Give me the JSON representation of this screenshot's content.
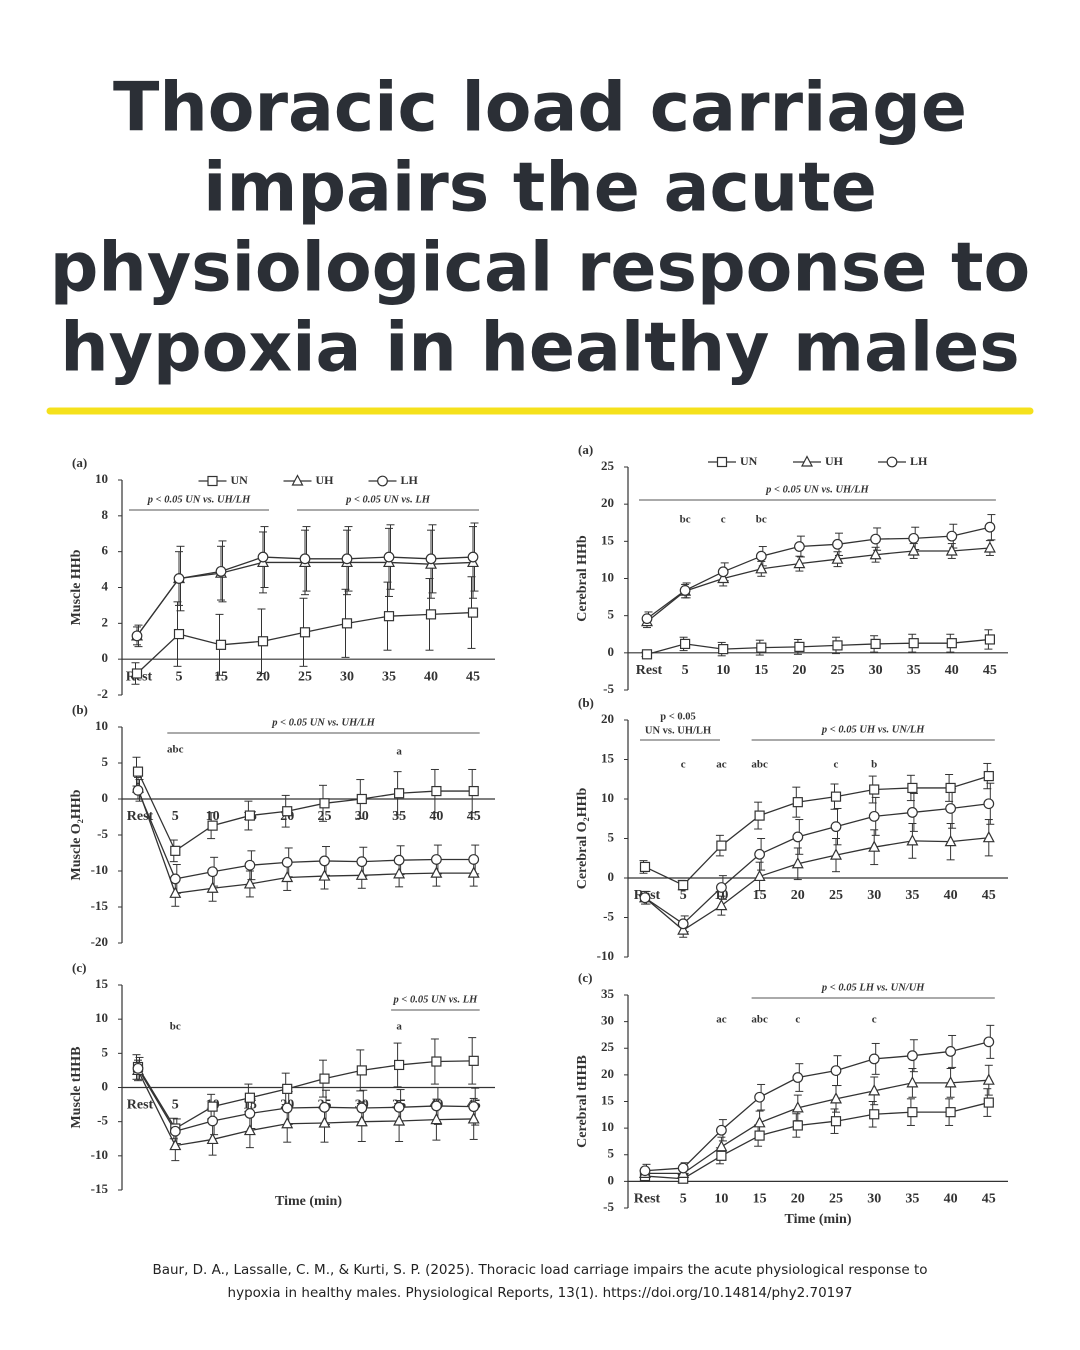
{
  "header": {
    "title": [
      "Thoracic load carriage",
      "impairs the acute",
      "physiological response to",
      "hypoxia in healthy males"
    ]
  },
  "citation": [
    "Baur, D. A., Lassalle, C. M., & Kurti, S. P. (2025). Thoracic load carriage impairs the acute physiological response to",
    "hypoxia in healthy males. Physiological Reports, 13(1). https://doi.org/10.14814/phy2.70197"
  ],
  "chart_data": [
    {
      "type": "line",
      "panel": "(a)",
      "y_label": "Muscle HHb",
      "categories": [
        "Rest",
        "5",
        "15",
        "20",
        "25",
        "30",
        "35",
        "40",
        "45"
      ],
      "ylim": [
        -2,
        10
      ],
      "yticks": [
        -2,
        0,
        2,
        4,
        6,
        8,
        10
      ],
      "legend": true,
      "annotations": [
        "p < 0.05 UN vs. UH/LH",
        "p < 0.05 UN vs. LH"
      ],
      "series": [
        {
          "name": "UN",
          "marker": "square",
          "color": "#333333",
          "values": [
            -0.8,
            1.4,
            0.8,
            1.0,
            1.5,
            2.0,
            2.4,
            2.5,
            2.6
          ],
          "errors": [
            0.6,
            1.8,
            1.7,
            1.8,
            1.9,
            1.9,
            1.9,
            2.0,
            2.0
          ]
        },
        {
          "name": "UH",
          "marker": "triangle",
          "color": "#333333",
          "values": [
            1.3,
            4.5,
            4.8,
            5.4,
            5.4,
            5.4,
            5.4,
            5.3,
            5.4
          ],
          "errors": [
            0.5,
            1.5,
            1.5,
            1.7,
            1.8,
            1.8,
            1.9,
            1.9,
            2.0
          ]
        },
        {
          "name": "LH",
          "marker": "circle",
          "color": "#333333",
          "values": [
            1.3,
            4.5,
            4.9,
            5.7,
            5.6,
            5.6,
            5.7,
            5.6,
            5.7
          ],
          "errors": [
            0.6,
            1.8,
            1.7,
            1.7,
            1.8,
            1.8,
            1.8,
            1.9,
            1.9
          ]
        }
      ]
    },
    {
      "type": "line",
      "panel": "(a)",
      "y_label": "Cerebral HHb",
      "categories": [
        "Rest",
        "5",
        "10",
        "15",
        "20",
        "25",
        "30",
        "35",
        "40",
        "45"
      ],
      "ylim": [
        -5,
        25
      ],
      "yticks": [
        -5,
        0,
        5,
        10,
        15,
        20,
        25
      ],
      "legend": true,
      "annotations": [
        "p < 0.05 UN vs. UH/LH",
        "bc",
        "c",
        "bc"
      ],
      "series": [
        {
          "name": "UN",
          "marker": "square",
          "color": "#333333",
          "values": [
            -0.2,
            1.2,
            0.5,
            0.7,
            0.8,
            1.0,
            1.2,
            1.3,
            1.3,
            1.8
          ],
          "errors": [
            0.3,
            0.9,
            0.9,
            1.0,
            1.0,
            1.1,
            1.1,
            1.2,
            1.2,
            1.3
          ]
        },
        {
          "name": "UH",
          "marker": "triangle",
          "color": "#333333",
          "values": [
            4.2,
            8.3,
            10.0,
            11.3,
            12.0,
            12.6,
            13.2,
            13.7,
            13.7,
            14.1
          ],
          "errors": [
            0.8,
            0.9,
            1.0,
            1.0,
            1.0,
            1.0,
            1.0,
            1.0,
            1.0,
            1.0
          ]
        },
        {
          "name": "LH",
          "marker": "circle",
          "color": "#333333",
          "values": [
            4.6,
            8.4,
            10.9,
            13.0,
            14.3,
            14.6,
            15.3,
            15.4,
            15.7,
            16.9
          ],
          "errors": [
            0.9,
            1.0,
            1.2,
            1.3,
            1.4,
            1.5,
            1.5,
            1.5,
            1.6,
            1.7
          ]
        }
      ]
    },
    {
      "type": "line",
      "panel": "(b)",
      "y_label": "Muscle O₂HHb",
      "categories": [
        "Rest",
        "5",
        "10",
        "15",
        "20",
        "25",
        "30",
        "35",
        "40",
        "45"
      ],
      "ylim": [
        -20,
        10
      ],
      "yticks": [
        -20,
        -15,
        -10,
        -5,
        0,
        5,
        10
      ],
      "legend": false,
      "annotations": [
        "p < 0.05 UN vs. UH/LH",
        "abc",
        "a"
      ],
      "series": [
        {
          "name": "UN",
          "marker": "square",
          "color": "#333333",
          "values": [
            3.8,
            -7.2,
            -3.7,
            -2.3,
            -1.7,
            -0.6,
            0.0,
            0.8,
            1.1,
            1.1
          ],
          "errors": [
            2.0,
            1.5,
            1.8,
            2.0,
            2.2,
            2.5,
            2.7,
            3.0,
            3.0,
            3.0
          ]
        },
        {
          "name": "UH",
          "marker": "triangle",
          "color": "#333333",
          "values": [
            1.5,
            -13.1,
            -12.4,
            -11.8,
            -10.9,
            -10.7,
            -10.6,
            -10.4,
            -10.3,
            -10.3
          ],
          "errors": [
            1.5,
            1.8,
            1.8,
            1.8,
            1.8,
            1.8,
            1.8,
            1.8,
            1.8,
            1.8
          ]
        },
        {
          "name": "LH",
          "marker": "circle",
          "color": "#333333",
          "values": [
            1.2,
            -11.1,
            -10.1,
            -9.2,
            -8.8,
            -8.6,
            -8.7,
            -8.5,
            -8.4,
            -8.4
          ],
          "errors": [
            1.5,
            2.0,
            2.0,
            2.0,
            2.0,
            2.0,
            2.0,
            2.0,
            2.0,
            2.0
          ]
        }
      ]
    },
    {
      "type": "line",
      "panel": "(b)",
      "y_label": "Cerebral O₂HHb",
      "categories": [
        "Rest",
        "5",
        "10",
        "15",
        "20",
        "25",
        "30",
        "35",
        "40",
        "45"
      ],
      "ylim": [
        -10,
        20
      ],
      "yticks": [
        -10,
        -5,
        0,
        5,
        10,
        15,
        20
      ],
      "legend": false,
      "annotations": [
        "p < 0.05",
        "UN vs. UH/LH",
        "p < 0.05 UH vs. UN/LH",
        "c",
        "ac",
        "abc",
        "c",
        "b"
      ],
      "series": [
        {
          "name": "UN",
          "marker": "square",
          "color": "#333333",
          "values": [
            1.4,
            -0.9,
            4.1,
            7.9,
            9.6,
            10.3,
            11.2,
            11.4,
            11.4,
            12.9
          ],
          "errors": [
            0.8,
            0.6,
            1.3,
            1.7,
            1.9,
            1.6,
            1.7,
            1.6,
            1.7,
            1.6
          ]
        },
        {
          "name": "UH",
          "marker": "triangle",
          "color": "#333333",
          "values": [
            -2.5,
            -6.6,
            -3.5,
            0.2,
            1.8,
            2.9,
            3.9,
            4.7,
            4.6,
            5.1
          ],
          "errors": [
            0.8,
            0.9,
            1.2,
            1.8,
            2.0,
            2.1,
            2.2,
            2.2,
            2.3,
            2.3
          ]
        },
        {
          "name": "LH",
          "marker": "circle",
          "color": "#333333",
          "values": [
            -2.5,
            -5.8,
            -1.2,
            3.0,
            5.2,
            6.5,
            7.8,
            8.3,
            8.8,
            9.4
          ],
          "errors": [
            0.8,
            1.0,
            1.5,
            2.0,
            2.2,
            2.3,
            2.4,
            2.4,
            2.5,
            2.6
          ]
        }
      ]
    },
    {
      "type": "line",
      "panel": "(c)",
      "y_label": "Muscle tHHB",
      "x_label": "Time (min)",
      "categories": [
        "Rest",
        "5",
        "10",
        "15",
        "20",
        "25",
        "30",
        "35",
        "40",
        "45"
      ],
      "ylim": [
        -15,
        15
      ],
      "yticks": [
        -15,
        -10,
        -5,
        0,
        5,
        10,
        15
      ],
      "legend": false,
      "annotations": [
        "p < 0.05 UN vs. LH",
        "bc",
        "a"
      ],
      "series": [
        {
          "name": "UN",
          "marker": "square",
          "color": "#333333",
          "values": [
            3.0,
            -6.0,
            -2.8,
            -1.5,
            -0.2,
            1.3,
            2.5,
            3.3,
            3.8,
            3.9
          ],
          "errors": [
            1.8,
            1.5,
            1.8,
            2.0,
            2.3,
            2.7,
            3.0,
            3.2,
            3.3,
            3.4
          ]
        },
        {
          "name": "UH",
          "marker": "triangle",
          "color": "#333333",
          "values": [
            2.5,
            -8.5,
            -7.6,
            -6.3,
            -5.3,
            -5.2,
            -5.0,
            -4.9,
            -4.7,
            -4.6
          ],
          "errors": [
            1.5,
            2.2,
            2.3,
            2.5,
            2.7,
            2.8,
            2.9,
            3.0,
            3.0,
            3.0
          ]
        },
        {
          "name": "LH",
          "marker": "circle",
          "color": "#333333",
          "values": [
            2.8,
            -6.4,
            -4.9,
            -3.8,
            -3.0,
            -2.9,
            -3.0,
            -2.9,
            -2.7,
            -2.8
          ],
          "errors": [
            1.6,
            1.8,
            2.0,
            2.2,
            2.4,
            2.5,
            2.6,
            2.6,
            2.7,
            2.7
          ]
        }
      ]
    },
    {
      "type": "line",
      "panel": "(c)",
      "y_label": "Cerebral tHHB",
      "x_label": "Time (min)",
      "categories": [
        "Rest",
        "5",
        "10",
        "15",
        "20",
        "25",
        "30",
        "35",
        "40",
        "45"
      ],
      "ylim": [
        -5,
        35
      ],
      "yticks": [
        -5,
        0,
        5,
        10,
        15,
        20,
        25,
        30,
        35
      ],
      "legend": false,
      "annotations": [
        "p < 0.05 LH vs. UN/UH",
        "ac",
        "abc",
        "c",
        "c"
      ],
      "series": [
        {
          "name": "UN",
          "marker": "square",
          "color": "#333333",
          "values": [
            1.0,
            0.5,
            4.8,
            8.6,
            10.5,
            11.3,
            12.6,
            13.0,
            13.0,
            14.8
          ],
          "errors": [
            1.0,
            0.8,
            1.5,
            2.0,
            2.2,
            2.3,
            2.4,
            2.5,
            2.5,
            2.6
          ]
        },
        {
          "name": "UH",
          "marker": "triangle",
          "color": "#333333",
          "values": [
            1.5,
            1.5,
            6.5,
            11.0,
            13.8,
            15.5,
            17.0,
            18.5,
            18.5,
            19.0
          ],
          "errors": [
            1.0,
            1.0,
            1.8,
            2.2,
            2.4,
            2.5,
            2.6,
            2.7,
            2.7,
            2.8
          ]
        },
        {
          "name": "LH",
          "marker": "circle",
          "color": "#333333",
          "values": [
            2.0,
            2.5,
            9.6,
            15.8,
            19.5,
            20.8,
            23.0,
            23.6,
            24.4,
            26.2
          ],
          "errors": [
            1.2,
            1.0,
            2.0,
            2.4,
            2.6,
            2.8,
            2.9,
            3.0,
            3.0,
            3.1
          ]
        }
      ]
    }
  ]
}
